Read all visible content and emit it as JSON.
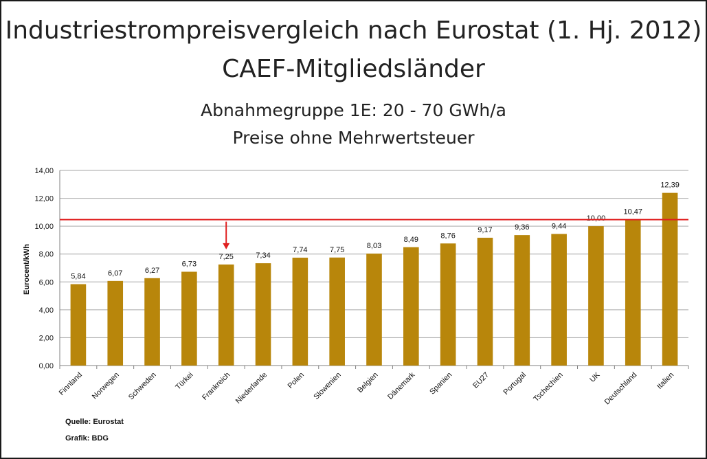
{
  "header": {
    "title_line1": "Industriestrompreisvergleich nach Eurostat (1. Hj. 2012)",
    "title_line2": "CAEF-Mitgliedsländer",
    "subtitle_line1": "Abnahmegruppe 1E: 20 - 70 GWh/a",
    "subtitle_line2": "Preise ohne Mehrwertsteuer"
  },
  "footer": {
    "source": "Quelle: Eurostat",
    "graphic": "Grafik: BDG"
  },
  "chart_data": {
    "type": "bar",
    "categories": [
      "Finnland",
      "Norwegen",
      "Schweden",
      "Türkei",
      "Frankreich",
      "Niederlande",
      "Polen",
      "Slowenien",
      "Belgien",
      "Dänemark",
      "Spanien",
      "EU27",
      "Portugal",
      "Tschechien",
      "UK",
      "Deutschland",
      "Italien"
    ],
    "values": [
      5.84,
      6.07,
      6.27,
      6.73,
      7.25,
      7.34,
      7.74,
      7.75,
      8.03,
      8.49,
      8.76,
      9.17,
      9.36,
      9.44,
      10.0,
      10.47,
      12.39
    ],
    "value_labels": [
      "5,84",
      "6,07",
      "6,27",
      "6,73",
      "7,25",
      "7,34",
      "7,74",
      "7,75",
      "8,03",
      "8,49",
      "8,76",
      "9,17",
      "9,36",
      "9,44",
      "10,00",
      "10,47",
      "12,39"
    ],
    "ylabel": "Eurocent/kWh",
    "ylim": [
      0,
      14
    ],
    "yticks": [
      "0,00",
      "2,00",
      "4,00",
      "6,00",
      "8,00",
      "10,00",
      "12,00",
      "14,00"
    ],
    "grid": true,
    "reference_line": 10.47,
    "highlight_category": "Frankreich",
    "bar_color": "#b8860b",
    "reference_color": "#e02020",
    "arrow_color": "#e02020"
  }
}
